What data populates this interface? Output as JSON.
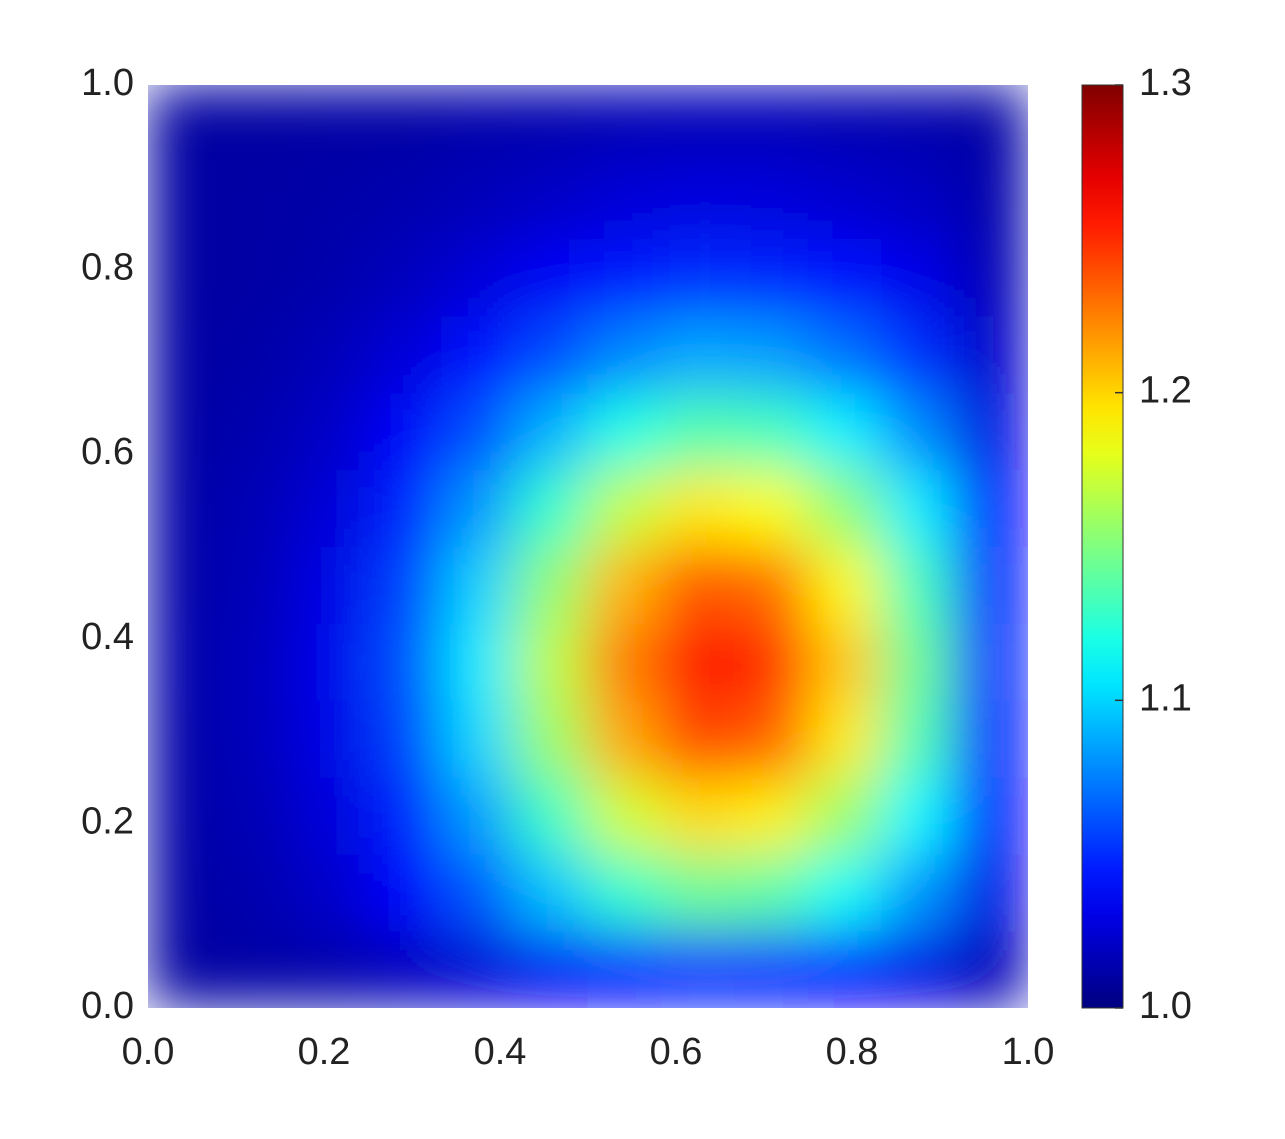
{
  "chart_data": {
    "type": "heatmap",
    "colormap": "jet",
    "x": [
      0.042,
      0.125,
      0.208,
      0.292,
      0.375,
      0.458,
      0.542,
      0.625,
      0.708,
      0.792,
      0.875,
      0.958
    ],
    "y": [
      0.042,
      0.125,
      0.208,
      0.292,
      0.375,
      0.458,
      0.542,
      0.625,
      0.708,
      0.792,
      0.875,
      0.958
    ],
    "z": [
      [
        1.01,
        1.011,
        1.013,
        1.018,
        1.025,
        1.034,
        1.042,
        1.047,
        1.046,
        1.039,
        1.03,
        1.016
      ],
      [
        1.011,
        1.014,
        1.022,
        1.037,
        1.063,
        1.095,
        1.127,
        1.144,
        1.139,
        1.115,
        1.082,
        1.03
      ],
      [
        1.012,
        1.016,
        1.027,
        1.048,
        1.084,
        1.13,
        1.174,
        1.198,
        1.192,
        1.158,
        1.111,
        1.039
      ],
      [
        1.012,
        1.018,
        1.03,
        1.057,
        1.101,
        1.158,
        1.213,
        1.243,
        1.235,
        1.193,
        1.135,
        1.045
      ],
      [
        1.013,
        1.018,
        1.032,
        1.061,
        1.107,
        1.168,
        1.226,
        1.258,
        1.25,
        1.204,
        1.143,
        1.048
      ],
      [
        1.012,
        1.017,
        1.03,
        1.056,
        1.099,
        1.155,
        1.209,
        1.238,
        1.231,
        1.189,
        1.132,
        1.045
      ],
      [
        1.012,
        1.016,
        1.026,
        1.047,
        1.082,
        1.127,
        1.17,
        1.194,
        1.187,
        1.154,
        1.108,
        1.038
      ],
      [
        1.011,
        1.014,
        1.021,
        1.036,
        1.06,
        1.09,
        1.12,
        1.136,
        1.132,
        1.109,
        1.078,
        1.029
      ],
      [
        1.011,
        1.012,
        1.017,
        1.026,
        1.04,
        1.059,
        1.077,
        1.087,
        1.084,
        1.07,
        1.051,
        1.022
      ],
      [
        1.01,
        1.011,
        1.013,
        1.018,
        1.026,
        1.035,
        1.045,
        1.05,
        1.048,
        1.041,
        1.031,
        1.016
      ],
      [
        1.01,
        1.011,
        1.012,
        1.014,
        1.017,
        1.021,
        1.026,
        1.028,
        1.027,
        1.024,
        1.02,
        1.013
      ],
      [
        1.01,
        1.01,
        1.011,
        1.011,
        1.013,
        1.014,
        1.016,
        1.017,
        1.017,
        1.015,
        1.014,
        1.011
      ]
    ],
    "xlim": [
      0,
      1
    ],
    "ylim": [
      0,
      1
    ],
    "xticks": [
      {
        "value": 0,
        "label": "0.0"
      },
      0.2,
      0.4,
      0.6,
      0.8,
      {
        "value": 1,
        "label": "1.0"
      }
    ],
    "yticks": [
      {
        "value": 0,
        "label": "0.0"
      },
      0.2,
      0.4,
      0.6,
      0.8,
      {
        "value": 1,
        "label": "1.0"
      }
    ],
    "clim": [
      1,
      1.3
    ],
    "cticks": [
      {
        "value": 1,
        "label": "1.0"
      },
      1.1,
      1.2,
      1.3
    ]
  }
}
